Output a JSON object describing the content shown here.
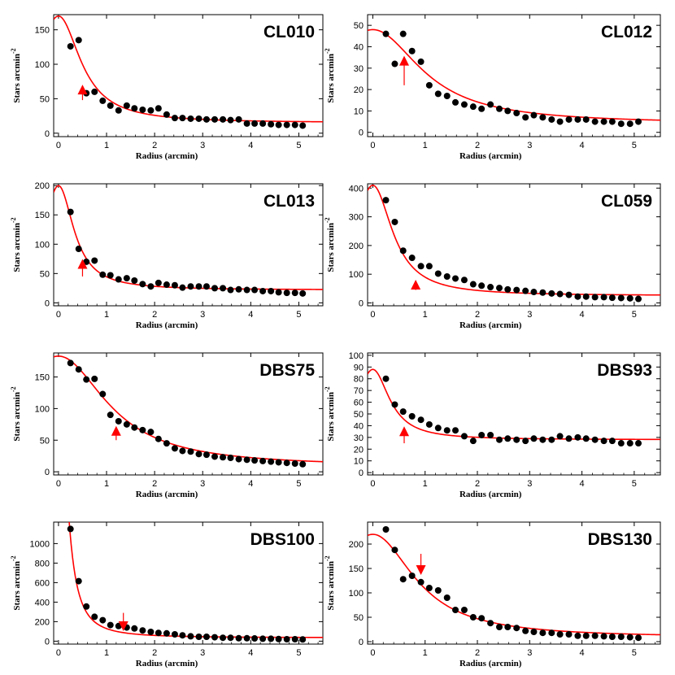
{
  "chart_data": [
    {
      "type": "scatter",
      "title": "CL010",
      "xlabel": "Radius (arcmin)",
      "ylabel": "Stars  arcmin",
      "ylabel_sup": "-2",
      "xlim": [
        -0.1,
        5.5
      ],
      "ylim": [
        -5,
        172
      ],
      "xticks": [
        0,
        1,
        2,
        3,
        4,
        5
      ],
      "yticks": [
        0,
        50,
        100,
        150
      ],
      "arrow": {
        "x": 0.5,
        "y_tip": 68,
        "y_tail": 48,
        "direction": "up"
      },
      "fit": {
        "type": "king",
        "background": 15,
        "amplitude": 155,
        "rc": 0.55
      },
      "x": [
        0.25,
        0.42,
        0.58,
        0.75,
        0.92,
        1.08,
        1.25,
        1.42,
        1.58,
        1.75,
        1.92,
        2.08,
        2.25,
        2.42,
        2.58,
        2.75,
        2.92,
        3.08,
        3.25,
        3.42,
        3.58,
        3.75,
        3.92,
        4.08,
        4.25,
        4.42,
        4.58,
        4.75,
        4.92,
        5.08
      ],
      "y": [
        126,
        135,
        58,
        60,
        47,
        40,
        33,
        40,
        36,
        34,
        33,
        36,
        27,
        22,
        22,
        21,
        21,
        20,
        20,
        20,
        19,
        20,
        14,
        14,
        14,
        13,
        12,
        12,
        12,
        11
      ]
    },
    {
      "type": "scatter",
      "title": "CL012",
      "xlabel": "Radius (arcmin)",
      "ylabel": "Stars  arcmin",
      "ylabel_sup": "-2",
      "xlim": [
        -0.1,
        5.5
      ],
      "ylim": [
        -2,
        55
      ],
      "xticks": [
        0,
        1,
        2,
        3,
        4,
        5
      ],
      "yticks": [
        0,
        10,
        20,
        30,
        40,
        50
      ],
      "arrow": {
        "x": 0.6,
        "y_tip": 35,
        "y_tail": 22,
        "direction": "up"
      },
      "fit": {
        "type": "king",
        "background": 4,
        "amplitude": 44,
        "rc": 1.1
      },
      "x": [
        0.25,
        0.42,
        0.58,
        0.75,
        0.92,
        1.08,
        1.25,
        1.42,
        1.58,
        1.75,
        1.92,
        2.08,
        2.25,
        2.42,
        2.58,
        2.75,
        2.92,
        3.08,
        3.25,
        3.42,
        3.58,
        3.75,
        3.92,
        4.08,
        4.25,
        4.42,
        4.58,
        4.75,
        4.92,
        5.08
      ],
      "y": [
        46,
        32,
        46,
        38,
        33,
        22,
        18,
        17,
        14,
        13,
        12,
        11,
        13,
        11,
        10,
        9,
        7,
        8,
        7,
        6,
        5,
        6,
        6,
        6,
        5,
        5,
        5,
        4,
        4,
        5
      ]
    },
    {
      "type": "scatter",
      "title": "CL013",
      "xlabel": "Radius (arcmin)",
      "ylabel": "Stars  arcmin",
      "ylabel_sup": "-2",
      "xlim": [
        -0.1,
        5.5
      ],
      "ylim": [
        -5,
        203
      ],
      "xticks": [
        0,
        1,
        2,
        3,
        4,
        5
      ],
      "yticks": [
        0,
        50,
        100,
        150,
        200
      ],
      "arrow": {
        "x": 0.5,
        "y_tip": 72,
        "y_tail": 45,
        "direction": "up"
      },
      "fit": {
        "type": "king",
        "background": 22,
        "amplitude": 178,
        "rc": 0.38
      },
      "x": [
        0.25,
        0.42,
        0.58,
        0.75,
        0.92,
        1.08,
        1.25,
        1.42,
        1.58,
        1.75,
        1.92,
        2.08,
        2.25,
        2.42,
        2.58,
        2.75,
        2.92,
        3.08,
        3.25,
        3.42,
        3.58,
        3.75,
        3.92,
        4.08,
        4.25,
        4.42,
        4.58,
        4.75,
        4.92,
        5.08
      ],
      "y": [
        155,
        92,
        70,
        72,
        48,
        47,
        40,
        42,
        38,
        32,
        28,
        34,
        31,
        30,
        26,
        28,
        28,
        28,
        25,
        25,
        22,
        23,
        22,
        22,
        20,
        20,
        18,
        17,
        17,
        16
      ]
    },
    {
      "type": "scatter",
      "title": "CL059",
      "xlabel": "Radius (arcmin)",
      "ylabel": "Stars  arcmin",
      "ylabel_sup": "-2",
      "xlim": [
        -0.1,
        5.5
      ],
      "ylim": [
        -10,
        415
      ],
      "xticks": [
        0,
        1,
        2,
        3,
        4,
        5
      ],
      "yticks": [
        0,
        100,
        200,
        300,
        400
      ],
      "arrow": {
        "x": 0.82,
        "y_tip": 75,
        "y_tail": 45,
        "direction": "up"
      },
      "fit": {
        "type": "king",
        "background": 25,
        "amplitude": 385,
        "rc": 0.45
      },
      "x": [
        0.25,
        0.42,
        0.58,
        0.75,
        0.92,
        1.08,
        1.25,
        1.42,
        1.58,
        1.75,
        1.92,
        2.08,
        2.25,
        2.42,
        2.58,
        2.75,
        2.92,
        3.08,
        3.25,
        3.42,
        3.58,
        3.75,
        3.92,
        4.08,
        4.25,
        4.42,
        4.58,
        4.75,
        4.92,
        5.08
      ],
      "y": [
        358,
        282,
        182,
        157,
        128,
        128,
        102,
        92,
        85,
        80,
        65,
        60,
        55,
        52,
        47,
        45,
        42,
        38,
        36,
        33,
        31,
        28,
        22,
        22,
        20,
        20,
        18,
        17,
        16,
        14
      ]
    },
    {
      "type": "scatter",
      "title": "DBS75",
      "xlabel": "Radius (arcmin)",
      "ylabel": "Stars  arcmin",
      "ylabel_sup": "-2",
      "xlim": [
        -0.1,
        5.5
      ],
      "ylim": [
        -5,
        188
      ],
      "xticks": [
        0,
        1,
        2,
        3,
        4,
        5
      ],
      "yticks": [
        0,
        50,
        100,
        150
      ],
      "arrow": {
        "x": 1.2,
        "y_tip": 70,
        "y_tail": 50,
        "direction": "up"
      },
      "fit": {
        "type": "king",
        "background": 8,
        "amplitude": 175,
        "rc": 1.2
      },
      "x": [
        0.25,
        0.42,
        0.58,
        0.75,
        0.92,
        1.08,
        1.25,
        1.42,
        1.58,
        1.75,
        1.92,
        2.08,
        2.25,
        2.42,
        2.58,
        2.75,
        2.92,
        3.08,
        3.25,
        3.42,
        3.58,
        3.75,
        3.92,
        4.08,
        4.25,
        4.42,
        4.58,
        4.75,
        4.92,
        5.08
      ],
      "y": [
        172,
        162,
        146,
        147,
        123,
        90,
        80,
        75,
        70,
        66,
        63,
        52,
        45,
        37,
        33,
        32,
        28,
        27,
        24,
        23,
        22,
        20,
        19,
        18,
        17,
        16,
        15,
        14,
        13,
        12
      ]
    },
    {
      "type": "scatter",
      "title": "DBS93",
      "xlabel": "Radius (arcmin)",
      "ylabel": "Stars  arcmin",
      "ylabel_sup": "-2",
      "xlim": [
        -0.1,
        5.5
      ],
      "ylim": [
        -2,
        102
      ],
      "xticks": [
        0,
        1,
        2,
        3,
        4,
        5
      ],
      "yticks": [
        0,
        10,
        20,
        30,
        40,
        50,
        60,
        70,
        80,
        90,
        100
      ],
      "arrow": {
        "x": 0.6,
        "y_tip": 38,
        "y_tail": 25,
        "direction": "up"
      },
      "fit": {
        "type": "king",
        "background": 28,
        "amplitude": 60,
        "rc": 0.38
      },
      "x": [
        0.25,
        0.42,
        0.58,
        0.75,
        0.92,
        1.08,
        1.25,
        1.42,
        1.58,
        1.75,
        1.92,
        2.08,
        2.25,
        2.42,
        2.58,
        2.75,
        2.92,
        3.08,
        3.25,
        3.42,
        3.58,
        3.75,
        3.92,
        4.08,
        4.25,
        4.42,
        4.58,
        4.75,
        4.92,
        5.08
      ],
      "y": [
        80,
        58,
        52,
        48,
        45,
        41,
        38,
        36,
        36,
        31,
        27,
        32,
        32,
        28,
        29,
        28,
        27,
        29,
        28,
        28,
        31,
        29,
        30,
        29,
        28,
        27,
        27,
        25,
        25,
        25
      ]
    },
    {
      "type": "scatter",
      "title": "DBS100",
      "xlabel": "Radius (arcmin)",
      "ylabel": "Stars  arcmin",
      "ylabel_sup": "-2",
      "xlim": [
        -0.1,
        5.5
      ],
      "ylim": [
        -30,
        1220
      ],
      "xticks": [
        0,
        1,
        2,
        3,
        4,
        5
      ],
      "yticks": [
        0,
        200,
        400,
        600,
        800,
        1000
      ],
      "arrow": {
        "x": 1.35,
        "y_tip": 120,
        "y_tail": 290,
        "direction": "down"
      },
      "fit": {
        "type": "king",
        "background": 35,
        "amplitude": 3000,
        "rc": 0.18
      },
      "x": [
        0.25,
        0.42,
        0.58,
        0.75,
        0.92,
        1.08,
        1.25,
        1.42,
        1.58,
        1.75,
        1.92,
        2.08,
        2.25,
        2.42,
        2.58,
        2.75,
        2.92,
        3.08,
        3.25,
        3.42,
        3.58,
        3.75,
        3.92,
        4.08,
        4.25,
        4.42,
        4.58,
        4.75,
        4.92,
        5.08
      ],
      "y": [
        1150,
        615,
        355,
        250,
        215,
        165,
        155,
        140,
        130,
        110,
        95,
        85,
        80,
        70,
        60,
        50,
        45,
        45,
        40,
        35,
        35,
        30,
        30,
        28,
        25,
        25,
        22,
        20,
        20,
        18
      ]
    },
    {
      "type": "scatter",
      "title": "DBS130",
      "xlabel": "Radius (arcmin)",
      "ylabel": "Stars  arcmin",
      "ylabel_sup": "-2",
      "xlim": [
        -0.1,
        5.5
      ],
      "ylim": [
        -5,
        245
      ],
      "xticks": [
        0,
        1,
        2,
        3,
        4,
        5
      ],
      "yticks": [
        0,
        50,
        100,
        150,
        200
      ],
      "arrow": {
        "x": 0.92,
        "y_tip": 140,
        "y_tail": 180,
        "direction": "down"
      },
      "fit": {
        "type": "king",
        "background": 8,
        "amplitude": 212,
        "rc": 0.95
      },
      "x": [
        0.25,
        0.42,
        0.58,
        0.75,
        0.92,
        1.08,
        1.25,
        1.42,
        1.58,
        1.75,
        1.92,
        2.08,
        2.25,
        2.42,
        2.58,
        2.75,
        2.92,
        3.08,
        3.25,
        3.42,
        3.58,
        3.75,
        3.92,
        4.08,
        4.25,
        4.42,
        4.58,
        4.75,
        4.92,
        5.08
      ],
      "y": [
        230,
        188,
        128,
        135,
        122,
        110,
        105,
        90,
        65,
        65,
        50,
        48,
        38,
        30,
        30,
        28,
        22,
        20,
        18,
        18,
        15,
        15,
        12,
        12,
        12,
        11,
        10,
        10,
        9,
        8
      ]
    }
  ],
  "colors": {
    "fit": "#ff0000",
    "arrow": "#ff0000",
    "points": "#000000",
    "axis": "#000000"
  }
}
